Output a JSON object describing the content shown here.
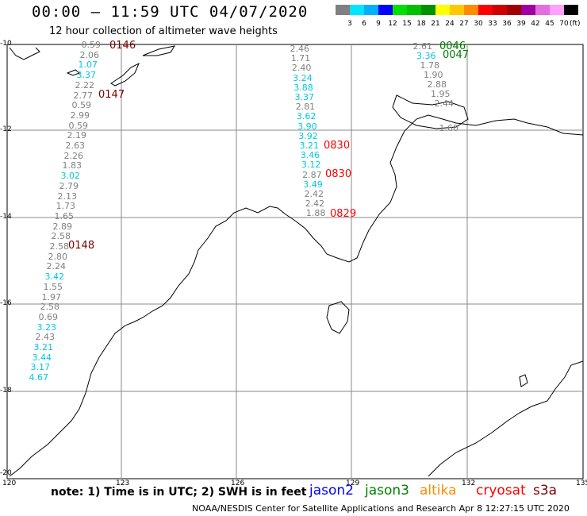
{
  "title": "00:00 – 11:59 UTC 04/07/2020",
  "subtitle": "12 hour collection of altimeter wave heights",
  "legend": {
    "unit": "(ft)",
    "ticks": [
      "3",
      "6",
      "9",
      "12",
      "15",
      "18",
      "21",
      "24",
      "27",
      "30",
      "33",
      "36",
      "39",
      "42",
      "45",
      "70"
    ],
    "colors": [
      "#808080",
      "#00e5ff",
      "#00b0ff",
      "#0000ff",
      "#00e000",
      "#00c000",
      "#009000",
      "#ffff00",
      "#ffc800",
      "#ff8c00",
      "#ff0000",
      "#d00000",
      "#a00000",
      "#a000a0",
      "#e070e0",
      "#ffa0ff",
      "#000000"
    ]
  },
  "axes": {
    "lat_labels": [
      "-10",
      "-12",
      "-14",
      "-16",
      "-18",
      "-20"
    ],
    "lon_labels": [
      "120",
      "123",
      "126",
      "129",
      "132",
      "135"
    ]
  },
  "tracks": [
    {
      "time": "0146",
      "color": "#800000",
      "values": [
        {
          "v": "0.59",
          "c": "#808080"
        },
        {
          "v": "2.06",
          "c": "#808080"
        },
        {
          "v": "1.07",
          "c": "#00c8e0"
        },
        {
          "v": "3.37",
          "c": "#00c8e0"
        },
        {
          "v": "2.22",
          "c": "#808080"
        },
        {
          "v": "2.77",
          "c": "#808080"
        },
        {
          "v": "0.59",
          "c": "#808080"
        },
        {
          "v": "2.99",
          "c": "#808080"
        },
        {
          "v": "0.59",
          "c": "#808080"
        },
        {
          "v": "2.19",
          "c": "#808080"
        },
        {
          "v": "2.63",
          "c": "#808080"
        },
        {
          "v": "2.26",
          "c": "#808080"
        },
        {
          "v": "1.83",
          "c": "#808080"
        },
        {
          "v": "3.02",
          "c": "#00c8e0"
        },
        {
          "v": "2.79",
          "c": "#808080"
        },
        {
          "v": "2.13",
          "c": "#808080"
        },
        {
          "v": "1.73",
          "c": "#808080"
        },
        {
          "v": "1.65",
          "c": "#808080"
        },
        {
          "v": "2.89",
          "c": "#808080"
        },
        {
          "v": "2.58",
          "c": "#808080"
        },
        {
          "v": "2.58",
          "c": "#808080"
        },
        {
          "v": "2.80",
          "c": "#808080"
        },
        {
          "v": "2.24",
          "c": "#808080"
        },
        {
          "v": "3.42",
          "c": "#00c8e0"
        },
        {
          "v": "1.55",
          "c": "#808080"
        },
        {
          "v": "1.97",
          "c": "#808080"
        },
        {
          "v": "2.58",
          "c": "#808080"
        },
        {
          "v": "0.69",
          "c": "#808080"
        },
        {
          "v": "3.23",
          "c": "#00c8e0"
        },
        {
          "v": "2.43",
          "c": "#808080"
        },
        {
          "v": "3.21",
          "c": "#00c8e0"
        },
        {
          "v": "3.44",
          "c": "#00c8e0"
        },
        {
          "v": "3.17",
          "c": "#00c8e0"
        },
        {
          "v": "4.67",
          "c": "#00c8e0"
        }
      ]
    },
    {
      "times": [
        "0147",
        "0148"
      ],
      "color": "#800000"
    },
    {
      "time": "0830",
      "color": "#ff0000",
      "values": [
        {
          "v": "2.46",
          "c": "#808080"
        },
        {
          "v": "1.71",
          "c": "#808080"
        },
        {
          "v": "2.40",
          "c": "#808080"
        },
        {
          "v": "3.24",
          "c": "#00c8e0"
        },
        {
          "v": "3.88",
          "c": "#00c8e0"
        },
        {
          "v": "3.37",
          "c": "#00c8e0"
        },
        {
          "v": "2.81",
          "c": "#808080"
        },
        {
          "v": "3.62",
          "c": "#00c8e0"
        },
        {
          "v": "3.90",
          "c": "#00c8e0"
        },
        {
          "v": "3.92",
          "c": "#00c8e0"
        },
        {
          "v": "3.21",
          "c": "#00c8e0"
        },
        {
          "v": "3.46",
          "c": "#00c8e0"
        },
        {
          "v": "3.12",
          "c": "#00c8e0"
        },
        {
          "v": "2.87",
          "c": "#808080"
        },
        {
          "v": "3.49",
          "c": "#00c8e0"
        },
        {
          "v": "2.42",
          "c": "#808080"
        },
        {
          "v": "2.42",
          "c": "#808080"
        },
        {
          "v": "1.88",
          "c": "#808080"
        }
      ]
    },
    {
      "times": [
        "0830",
        "0829"
      ],
      "color": "#ff0000"
    },
    {
      "time": "0046",
      "color": "#008000",
      "values": [
        {
          "v": "2.61",
          "c": "#808080"
        },
        {
          "v": "3.36",
          "c": "#00c8e0"
        },
        {
          "v": "1.78",
          "c": "#808080"
        },
        {
          "v": "1.90",
          "c": "#808080"
        },
        {
          "v": "2.88",
          "c": "#808080"
        },
        {
          "v": "1.95",
          "c": "#808080"
        },
        {
          "v": "2.44",
          "c": "#808080"
        },
        {
          "v": "1.60",
          "c": "#808080"
        }
      ]
    },
    {
      "times": [
        "0047"
      ],
      "color": "#008000"
    }
  ],
  "note": "note:  1) Time is in UTC;  2) SWH is in feet",
  "satellites": [
    {
      "name": "jason2",
      "color": "#0000ff"
    },
    {
      "name": "jason3",
      "color": "#008000"
    },
    {
      "name": "altika",
      "color": "#ff8c00"
    },
    {
      "name": "cryosat",
      "color": "#ff0000"
    },
    {
      "name": "s3a",
      "color": "#800000"
    }
  ],
  "credit": "NOAA/NESDIS Center for Satellite Applications and Research    Apr  8 12:27:15 UTC 2020"
}
